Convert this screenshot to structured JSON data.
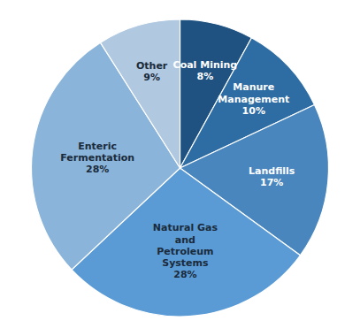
{
  "chart_data": {
    "type": "pie",
    "categories": [
      "Coal Mining",
      "Manure\nManagement",
      "Landfills",
      "Natural Gas\nand\nPetroleum\nSystems",
      "Enteric\nFermentation",
      "Other"
    ],
    "values": [
      8,
      10,
      17,
      28,
      28,
      9
    ],
    "value_labels": [
      "8%",
      "10%",
      "17%",
      "28%",
      "28%",
      "9%"
    ],
    "data_labels": true,
    "colors": [
      "#1f5280",
      "#2e6da4",
      "#4a86be",
      "#5b9bd5",
      "#8ab4d9",
      "#b0c8e0"
    ]
  }
}
